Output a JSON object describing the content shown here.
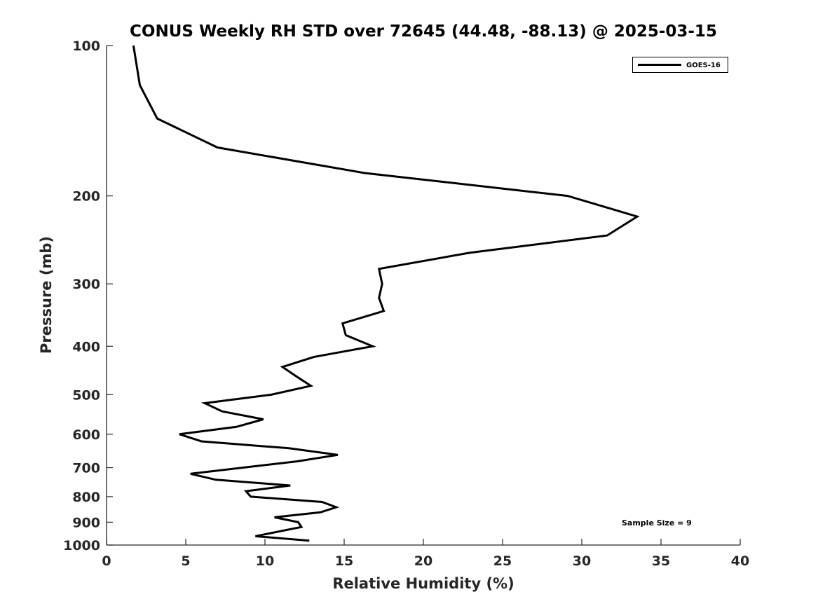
{
  "chart_data": {
    "type": "line",
    "title": "CONUS Weekly RH STD over 72645 (44.48, -88.13) @ 2025-03-15",
    "xlabel": "Relative Humidity (%)",
    "ylabel": "Pressure (mb)",
    "xlim": [
      0,
      40
    ],
    "ylim": [
      100,
      1000
    ],
    "yscale": "log",
    "yreversed": true,
    "grid": false,
    "xticks": [
      "0",
      "5",
      "10",
      "15",
      "20",
      "25",
      "30",
      "35",
      "40"
    ],
    "yticks": [
      "100",
      "200",
      "300",
      "400",
      "500",
      "600",
      "700",
      "800",
      "900",
      "1000"
    ],
    "legend": {
      "placement": "top-right",
      "entries": [
        "GOES-16"
      ]
    },
    "annotation": "Sample Size = 9",
    "series": [
      {
        "name": "GOES-16",
        "color": "#000000",
        "points": [
          [
            1.7,
            100
          ],
          [
            2.1,
            120
          ],
          [
            3.2,
            140
          ],
          [
            7.0,
            160
          ],
          [
            16.3,
            180
          ],
          [
            29.1,
            200
          ],
          [
            33.5,
            220
          ],
          [
            31.6,
            240
          ],
          [
            22.9,
            260
          ],
          [
            17.2,
            280
          ],
          [
            17.4,
            300
          ],
          [
            17.2,
            320
          ],
          [
            17.5,
            340
          ],
          [
            14.9,
            360
          ],
          [
            15.1,
            380
          ],
          [
            16.8,
            400
          ],
          [
            13.1,
            420
          ],
          [
            11.1,
            440
          ],
          [
            12.0,
            460
          ],
          [
            12.9,
            480
          ],
          [
            10.4,
            500
          ],
          [
            6.2,
            520
          ],
          [
            7.3,
            540
          ],
          [
            9.9,
            560
          ],
          [
            8.2,
            580
          ],
          [
            4.6,
            600
          ],
          [
            6.0,
            620
          ],
          [
            11.5,
            640
          ],
          [
            14.6,
            660
          ],
          [
            12.0,
            680
          ],
          [
            5.3,
            720
          ],
          [
            6.9,
            740
          ],
          [
            11.6,
            760
          ],
          [
            8.8,
            780
          ],
          [
            9.1,
            800
          ],
          [
            13.6,
            820
          ],
          [
            14.5,
            840
          ],
          [
            13.5,
            860
          ],
          [
            10.6,
            880
          ],
          [
            12.1,
            900
          ],
          [
            12.3,
            920
          ],
          [
            9.4,
            960
          ],
          [
            12.8,
            980
          ]
        ]
      }
    ]
  }
}
